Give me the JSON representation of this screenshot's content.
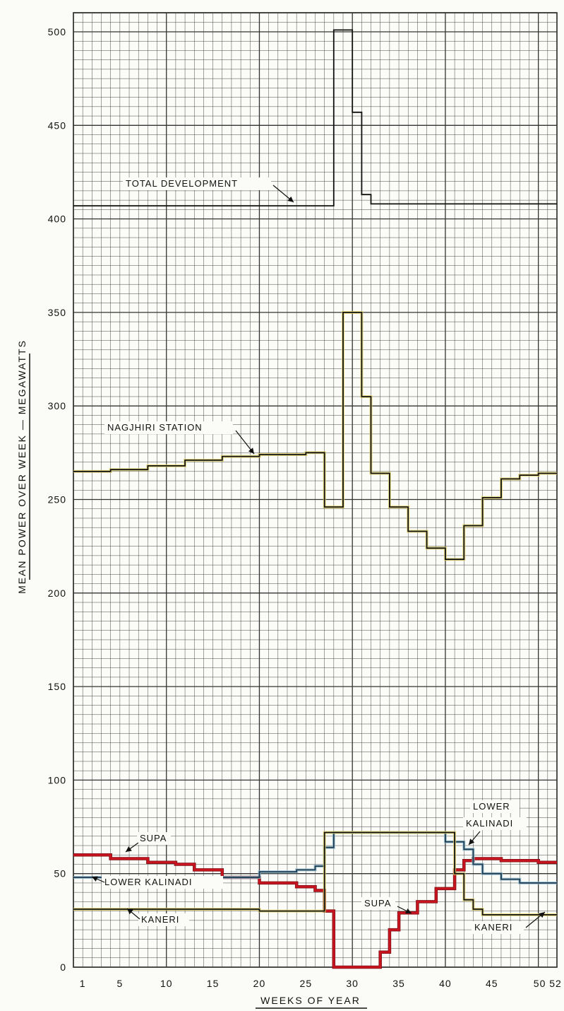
{
  "chart_data": {
    "type": "line",
    "step": true,
    "xlabel": "WEEKS OF YEAR",
    "ylabel": "MEAN POWER OVER WEEK — MEGAWATTS",
    "xlim": [
      0,
      52
    ],
    "ylim": [
      0,
      500
    ],
    "x_ticks": [
      1,
      5,
      10,
      15,
      20,
      25,
      30,
      35,
      40,
      45,
      50,
      52
    ],
    "x_tick_labels": [
      "1",
      "5",
      "10",
      "15",
      "20",
      "25",
      "30",
      "35",
      "40",
      "45",
      "50 52"
    ],
    "y_ticks": [
      0,
      50,
      100,
      150,
      200,
      250,
      300,
      350,
      400,
      450,
      500
    ],
    "grid": true,
    "series": [
      {
        "name": "TOTAL DEVELOPMENT",
        "color": "#111111",
        "x": [
          0,
          28,
          28,
          30,
          30,
          31,
          31,
          32,
          32,
          52
        ],
        "y": [
          407,
          407,
          501,
          501,
          457,
          457,
          413,
          413,
          408,
          408
        ]
      },
      {
        "name": "NAGJHIRI STATION",
        "color": "#111111",
        "x": [
          0,
          4,
          4,
          8,
          8,
          12,
          12,
          16,
          16,
          20,
          20,
          25,
          25,
          27,
          27,
          29,
          29,
          31,
          31,
          32,
          32,
          34,
          34,
          36,
          36,
          38,
          38,
          40,
          40,
          42,
          42,
          44,
          44,
          46,
          46,
          48,
          48,
          50,
          50,
          52
        ],
        "y": [
          265,
          265,
          266,
          266,
          268,
          268,
          271,
          271,
          273,
          273,
          274,
          274,
          275,
          275,
          246,
          246,
          350,
          350,
          305,
          305,
          264,
          264,
          246,
          246,
          233,
          233,
          224,
          224,
          218,
          218,
          236,
          236,
          251,
          251,
          261,
          261,
          263,
          263,
          264,
          264
        ]
      },
      {
        "name": "SUPA",
        "color": "#c8141e",
        "x": [
          0,
          4,
          4,
          8,
          8,
          11,
          11,
          13,
          13,
          16,
          16,
          20,
          20,
          24,
          24,
          26,
          26,
          27,
          27,
          28,
          28,
          33,
          33,
          34,
          34,
          35,
          35,
          37,
          37,
          39,
          39,
          41,
          41,
          42,
          42,
          43,
          43,
          46,
          46,
          50,
          50,
          52
        ],
        "y": [
          60,
          60,
          58,
          58,
          56,
          56,
          55,
          55,
          52,
          52,
          48,
          48,
          45,
          45,
          43,
          43,
          41,
          41,
          30,
          30,
          0,
          0,
          8,
          8,
          20,
          20,
          29,
          29,
          35,
          35,
          42,
          42,
          52,
          52,
          57,
          57,
          58,
          58,
          57,
          57,
          56,
          56
        ]
      },
      {
        "name": "LOWER KALINADI",
        "color": "#1b3a52",
        "x": [
          0,
          20,
          20,
          24,
          24,
          26,
          26,
          27,
          27,
          28,
          28,
          40,
          40,
          42,
          42,
          43,
          43,
          44,
          44,
          46,
          46,
          48,
          48,
          52
        ],
        "y": [
          48,
          48,
          51,
          51,
          52,
          52,
          54,
          54,
          64,
          64,
          72,
          72,
          67,
          67,
          63,
          63,
          55,
          55,
          50,
          50,
          47,
          47,
          45,
          45
        ]
      },
      {
        "name": "KANERI",
        "color": "#111111",
        "x": [
          0,
          20,
          20,
          27,
          27,
          41,
          41,
          42,
          42,
          43,
          43,
          44,
          44,
          52
        ],
        "y": [
          31,
          31,
          30,
          30,
          72,
          72,
          50,
          50,
          36,
          36,
          31,
          31,
          28,
          28
        ]
      }
    ],
    "annotations": [
      {
        "text": "TOTAL DEVELOPMENT",
        "series": "TOTAL DEVELOPMENT"
      },
      {
        "text": "NAGJHIRI STATION",
        "series": "NAGJHIRI STATION"
      },
      {
        "text": "SUPA",
        "series": "SUPA"
      },
      {
        "text": "LOWER KALINADI",
        "series": "LOWER KALINADI"
      },
      {
        "text": "KANERI",
        "series": "KANERI"
      },
      {
        "text": "LOWER",
        "series": "LOWER KALINADI"
      },
      {
        "text": "KALINADI",
        "series": "LOWER KALINADI"
      },
      {
        "text": "SUPA",
        "series": "SUPA"
      },
      {
        "text": "KANERI",
        "series": "KANERI"
      }
    ]
  }
}
